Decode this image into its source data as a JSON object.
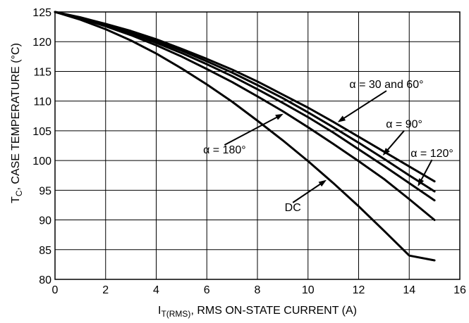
{
  "chart_data": {
    "type": "line",
    "xlabel": {
      "prefix": "I",
      "sub": "T(RMS)",
      "suffix": ", RMS ON-STATE CURRENT (A)"
    },
    "ylabel": {
      "prefix": "T",
      "sub": "C",
      "suffix": ", CASE TEMPERATURE (°C)"
    },
    "xlim": [
      0,
      16
    ],
    "ylim": [
      80,
      125
    ],
    "xticks": [
      "0",
      "2",
      "4",
      "6",
      "8",
      "10",
      "12",
      "14",
      "16"
    ],
    "yticks": [
      "80",
      "85",
      "90",
      "95",
      "100",
      "105",
      "110",
      "115",
      "120",
      "125"
    ],
    "grid": true,
    "series": [
      {
        "name": "α = 30 and 60°",
        "x": [
          0,
          1,
          2,
          3,
          4,
          5,
          6,
          7,
          8,
          9,
          10,
          11,
          12,
          13,
          14,
          15
        ],
        "y": [
          125,
          124.1,
          123.0,
          121.8,
          120.4,
          118.8,
          117.1,
          115.3,
          113.3,
          111.1,
          108.9,
          106.5,
          104.0,
          101.5,
          99.0,
          96.5
        ]
      },
      {
        "name": "α = 90°",
        "x": [
          0,
          1,
          2,
          3,
          4,
          5,
          6,
          7,
          8,
          9,
          10,
          11,
          12,
          13,
          14,
          15
        ],
        "y": [
          125,
          124.0,
          122.9,
          121.6,
          120.1,
          118.5,
          116.7,
          114.8,
          112.7,
          110.5,
          108.1,
          105.6,
          103.0,
          100.3,
          97.5,
          94.8
        ]
      },
      {
        "name": "α = 120°",
        "x": [
          0,
          1,
          2,
          3,
          4,
          5,
          6,
          7,
          8,
          9,
          10,
          11,
          12,
          13,
          14,
          15
        ],
        "y": [
          125,
          124.0,
          122.8,
          121.4,
          119.8,
          118.1,
          116.2,
          114.2,
          112.0,
          109.7,
          107.3,
          104.7,
          101.9,
          99.1,
          96.2,
          93.3
        ]
      },
      {
        "name": "α = 180°",
        "x": [
          0,
          1,
          2,
          3,
          4,
          5,
          6,
          7,
          8,
          9,
          10,
          11,
          12,
          13,
          14,
          15
        ],
        "y": [
          125,
          123.9,
          122.6,
          121.1,
          119.4,
          117.5,
          115.4,
          113.2,
          110.8,
          108.3,
          105.6,
          102.8,
          99.9,
          96.9,
          93.5,
          90.0
        ]
      },
      {
        "name": "DC",
        "x": [
          0,
          1,
          2,
          3,
          4,
          5,
          6,
          7,
          8,
          9,
          10,
          11,
          12,
          13,
          14,
          15
        ],
        "y": [
          125,
          123.7,
          122.1,
          120.2,
          118.0,
          115.5,
          112.8,
          109.9,
          106.7,
          103.4,
          99.9,
          96.2,
          92.3,
          88.2,
          84.0,
          83.2
        ]
      }
    ],
    "annotations": [
      {
        "text": "α = 30 and 60°",
        "series": 0,
        "target_x": 11.1,
        "label_x": 13.1,
        "label_y": 112.2
      },
      {
        "text": "α = 90°",
        "series": 1,
        "target_x": 12.9,
        "label_x": 13.8,
        "label_y": 105.5
      },
      {
        "text": "α = 120°",
        "series": 2,
        "target_x": 14.3,
        "label_x": 14.9,
        "label_y": 100.6
      },
      {
        "text": "α = 180°",
        "series": 3,
        "target_x": 9.1,
        "label_x": 6.7,
        "label_y": 101.2
      },
      {
        "text": "DC",
        "series": 4,
        "target_x": 10.8,
        "label_x": 9.4,
        "label_y": 91.5
      }
    ]
  }
}
